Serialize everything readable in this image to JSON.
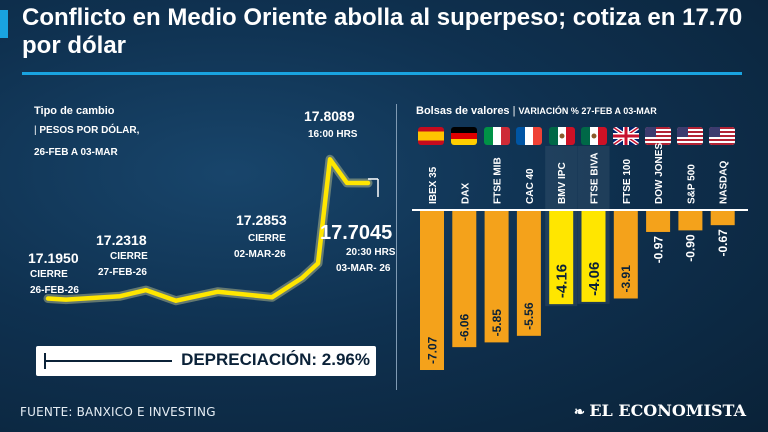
{
  "title": "Conflicto en Medio Oriente abolla al superpeso; cotiza en 17.70 por dólar",
  "fx": {
    "header": "Tipo de cambio",
    "unit": "PESOS POR DÓLAR,",
    "range": "26-FEB A 03-MAR",
    "points": [
      {
        "value": "17.1950",
        "tag": "CIERRE",
        "date": "26-FEB-26"
      },
      {
        "value": "17.2318",
        "tag": "CIERRE",
        "date": "27-FEB-26"
      },
      {
        "value": "17.2853",
        "tag": "CIERRE",
        "date": "02-MAR-26"
      },
      {
        "value": "17.8089",
        "tag": "16:00 HRS",
        "date": ""
      },
      {
        "value": "17.7045",
        "tag": "20:30 HRS",
        "date": "03-MAR- 26"
      }
    ],
    "depreciation": "DEPRECIACIÓN: 2.96%"
  },
  "bolsas": {
    "header": "Bolsas de valores",
    "subheader": "VARIACIÓN % 27-FEB A 03-MAR"
  },
  "chart_data": [
    {
      "type": "line",
      "title": "Tipo de cambio",
      "ylabel": "Pesos por dólar",
      "x": [
        "26-feb",
        "",
        "27-feb",
        "",
        "",
        "",
        "02-mar",
        "",
        "",
        "03-mar 16:00",
        "",
        "03-mar 20:30"
      ],
      "values": [
        17.195,
        17.19,
        17.205,
        17.2318,
        17.185,
        17.225,
        17.2,
        17.2853,
        17.35,
        17.8089,
        17.705,
        17.7045
      ],
      "ylim": [
        17.1,
        17.85
      ]
    },
    {
      "type": "bar",
      "title": "Bolsas de valores — Variación % 27-Feb a 03-Mar",
      "categories": [
        "IBEX 35",
        "DAX",
        "FTSE MIB",
        "CAC 40",
        "BMV IPC",
        "FTSE BIVA",
        "FTSE 100",
        "DOW JONES",
        "S&P 500",
        "NASDAQ"
      ],
      "values": [
        -7.07,
        -6.06,
        -5.85,
        -5.56,
        -4.16,
        -4.06,
        -3.91,
        -0.97,
        -0.9,
        -0.67
      ],
      "labels": [
        "-7.07",
        "-6.06",
        "-5.85",
        "-5.56",
        "-4.16",
        "-4.06",
        "-3.91",
        "-0.97",
        "-0.90",
        "-0.67"
      ],
      "countries": [
        "Spain",
        "Germany",
        "Italy",
        "France",
        "Mexico",
        "Mexico",
        "United Kingdom",
        "United States",
        "United States",
        "United States"
      ],
      "highlight": [
        "BMV IPC",
        "FTSE BIVA"
      ],
      "ylim": [
        -7.6,
        0
      ]
    }
  ],
  "colors": {
    "accent": "#19a3e0",
    "bar": "#f4a21b",
    "bar_mx": "#ffe600",
    "line": "#ffe600"
  },
  "footer": {
    "source": "FUENTE: BANXICO E INVESTING",
    "logo": "EL ECONOMISTA"
  }
}
